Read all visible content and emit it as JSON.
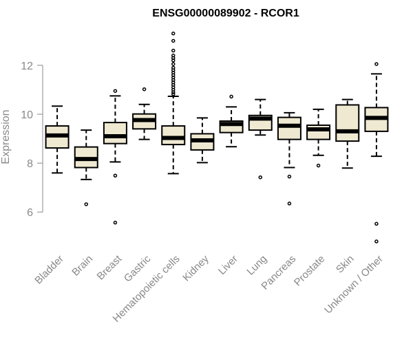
{
  "chart_data": {
    "type": "boxplot",
    "title": "ENSG00000089902 - RCOR1",
    "xlabel": "",
    "ylabel": "Expression",
    "ylim": [
      4.6,
      13.6
    ],
    "yticks": [
      6,
      8,
      10,
      12
    ],
    "box_fill": "#efe9d2",
    "categories": [
      "Bladder",
      "Brain",
      "Breast",
      "Gastric",
      "Hematopoietic cells",
      "Kidney",
      "Liver",
      "Lung",
      "Pancreas",
      "Prostate",
      "Skin",
      "Unknown / Other"
    ],
    "boxes": [
      {
        "name": "Bladder",
        "whisker_low": 7.6,
        "q1": 8.62,
        "median": 9.13,
        "q3": 9.52,
        "whisker_high": 10.33,
        "outliers": []
      },
      {
        "name": "Brain",
        "whisker_low": 7.33,
        "q1": 7.82,
        "median": 8.17,
        "q3": 8.66,
        "whisker_high": 9.35,
        "outliers": [
          6.32
        ]
      },
      {
        "name": "Breast",
        "whisker_low": 8.05,
        "q1": 8.8,
        "median": 9.1,
        "q3": 9.66,
        "whisker_high": 10.75,
        "outliers": [
          10.95,
          7.49,
          5.57
        ]
      },
      {
        "name": "Gastric",
        "whisker_low": 8.97,
        "q1": 9.4,
        "median": 9.76,
        "q3": 10.01,
        "whisker_high": 10.4,
        "outliers": [
          11.02
        ]
      },
      {
        "name": "Hematopoietic cells",
        "whisker_low": 7.57,
        "q1": 8.76,
        "median": 9.03,
        "q3": 9.52,
        "whisker_high": 10.73,
        "outliers": [
          13.3,
          13.0,
          12.6,
          12.4,
          12.3,
          12.2,
          12.05,
          11.9,
          11.8,
          11.7,
          11.6,
          11.5,
          11.4,
          11.3,
          11.2,
          11.1,
          11.0,
          10.9,
          10.82
        ]
      },
      {
        "name": "Kidney",
        "whisker_low": 8.02,
        "q1": 8.54,
        "median": 8.93,
        "q3": 9.2,
        "whisker_high": 9.85,
        "outliers": []
      },
      {
        "name": "Liver",
        "whisker_low": 8.67,
        "q1": 9.25,
        "median": 9.6,
        "q3": 9.72,
        "whisker_high": 10.3,
        "outliers": [
          10.72
        ]
      },
      {
        "name": "Lung",
        "whisker_low": 9.15,
        "q1": 9.35,
        "median": 9.82,
        "q3": 9.95,
        "whisker_high": 10.6,
        "outliers": [
          7.42
        ]
      },
      {
        "name": "Pancreas",
        "whisker_low": 7.82,
        "q1": 8.97,
        "median": 9.53,
        "q3": 9.87,
        "whisker_high": 10.06,
        "outliers": [
          7.45,
          6.35
        ]
      },
      {
        "name": "Prostate",
        "whisker_low": 8.32,
        "q1": 8.97,
        "median": 9.38,
        "q3": 9.55,
        "whisker_high": 10.2,
        "outliers": [
          7.9
        ]
      },
      {
        "name": "Skin",
        "whisker_low": 7.8,
        "q1": 8.9,
        "median": 9.3,
        "q3": 10.38,
        "whisker_high": 10.6,
        "outliers": []
      },
      {
        "name": "Unknown / Other",
        "whisker_low": 8.28,
        "q1": 9.3,
        "median": 9.85,
        "q3": 10.27,
        "whisker_high": 11.65,
        "outliers": [
          12.05,
          5.52,
          4.8
        ]
      }
    ]
  }
}
